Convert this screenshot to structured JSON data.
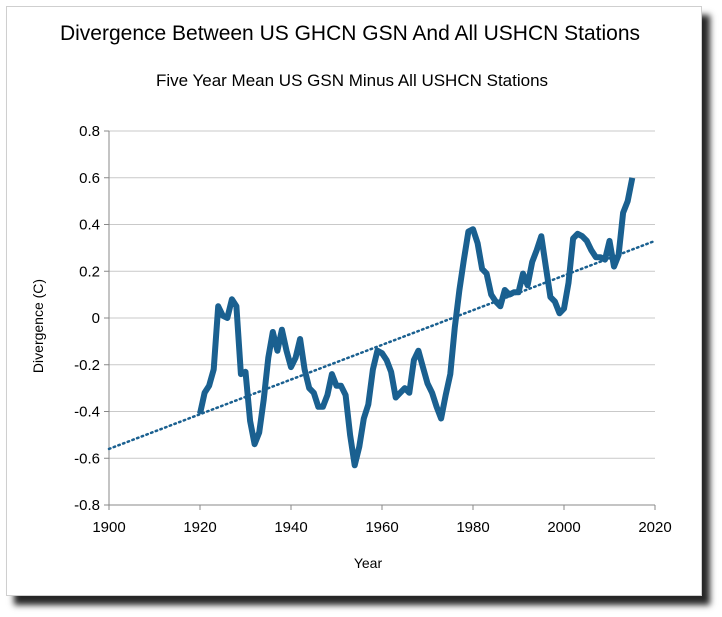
{
  "chart_data": {
    "type": "line",
    "title": "Divergence Between US GHCN GSN And All USHCN Stations",
    "subtitle": "Five Year Mean  US GSN Minus All USHCN Stations",
    "xlabel": "Year",
    "ylabel": "Divergence (C)",
    "xlim": [
      1900,
      2020
    ],
    "ylim": [
      -0.8,
      0.8
    ],
    "xticks": [
      "1900",
      "1920",
      "1940",
      "1960",
      "1980",
      "2000",
      "2020"
    ],
    "yticks": [
      "0.8",
      "0.6",
      "0.4",
      "0.2",
      "0",
      "-0.2",
      "-0.4",
      "-0.6",
      "-0.8"
    ],
    "grid": "horizontal",
    "series": [
      {
        "values": [
          [
            1920,
            -0.41
          ],
          [
            1921,
            -0.32
          ],
          [
            1922,
            -0.29
          ],
          [
            1923,
            -0.22
          ],
          [
            1924,
            0.05
          ],
          [
            1925,
            0.01
          ],
          [
            1926,
            0.0
          ],
          [
            1927,
            0.08
          ],
          [
            1928,
            0.05
          ],
          [
            1929,
            -0.24
          ],
          [
            1930,
            -0.23
          ],
          [
            1931,
            -0.44
          ],
          [
            1932,
            -0.54
          ],
          [
            1933,
            -0.49
          ],
          [
            1934,
            -0.35
          ],
          [
            1935,
            -0.17
          ],
          [
            1936,
            -0.06
          ],
          [
            1937,
            -0.14
          ],
          [
            1938,
            -0.05
          ],
          [
            1939,
            -0.14
          ],
          [
            1940,
            -0.21
          ],
          [
            1941,
            -0.17
          ],
          [
            1942,
            -0.09
          ],
          [
            1943,
            -0.22
          ],
          [
            1944,
            -0.3
          ],
          [
            1945,
            -0.32
          ],
          [
            1946,
            -0.38
          ],
          [
            1947,
            -0.38
          ],
          [
            1948,
            -0.33
          ],
          [
            1949,
            -0.24
          ],
          [
            1950,
            -0.29
          ],
          [
            1951,
            -0.29
          ],
          [
            1952,
            -0.33
          ],
          [
            1953,
            -0.5
          ],
          [
            1954,
            -0.63
          ],
          [
            1955,
            -0.55
          ],
          [
            1956,
            -0.43
          ],
          [
            1957,
            -0.37
          ],
          [
            1958,
            -0.22
          ],
          [
            1959,
            -0.14
          ],
          [
            1960,
            -0.15
          ],
          [
            1961,
            -0.18
          ],
          [
            1962,
            -0.23
          ],
          [
            1963,
            -0.34
          ],
          [
            1964,
            -0.32
          ],
          [
            1965,
            -0.3
          ],
          [
            1966,
            -0.32
          ],
          [
            1967,
            -0.18
          ],
          [
            1968,
            -0.14
          ],
          [
            1969,
            -0.21
          ],
          [
            1970,
            -0.28
          ],
          [
            1971,
            -0.32
          ],
          [
            1972,
            -0.38
          ],
          [
            1973,
            -0.43
          ],
          [
            1974,
            -0.33
          ],
          [
            1975,
            -0.24
          ],
          [
            1976,
            -0.04
          ],
          [
            1977,
            0.12
          ],
          [
            1978,
            0.25
          ],
          [
            1979,
            0.37
          ],
          [
            1980,
            0.38
          ],
          [
            1981,
            0.32
          ],
          [
            1982,
            0.21
          ],
          [
            1983,
            0.19
          ],
          [
            1984,
            0.1
          ],
          [
            1985,
            0.07
          ],
          [
            1986,
            0.05
          ],
          [
            1987,
            0.12
          ],
          [
            1988,
            0.1
          ],
          [
            1989,
            0.11
          ],
          [
            1990,
            0.11
          ],
          [
            1991,
            0.19
          ],
          [
            1992,
            0.14
          ],
          [
            1993,
            0.24
          ],
          [
            1994,
            0.29
          ],
          [
            1995,
            0.35
          ],
          [
            1996,
            0.22
          ],
          [
            1997,
            0.09
          ],
          [
            1998,
            0.07
          ],
          [
            1999,
            0.02
          ],
          [
            2000,
            0.04
          ],
          [
            2001,
            0.15
          ],
          [
            2002,
            0.34
          ],
          [
            2003,
            0.36
          ],
          [
            2004,
            0.35
          ],
          [
            2005,
            0.33
          ],
          [
            2006,
            0.29
          ],
          [
            2007,
            0.26
          ],
          [
            2008,
            0.26
          ],
          [
            2009,
            0.25
          ],
          [
            2010,
            0.33
          ],
          [
            2011,
            0.22
          ],
          [
            2012,
            0.27
          ],
          [
            2013,
            0.45
          ],
          [
            2014,
            0.5
          ],
          [
            2015,
            0.6
          ]
        ],
        "color": "#1a6090"
      }
    ],
    "trendline": {
      "style": "dotted",
      "color": "#1a6090",
      "points": [
        [
          1900,
          -0.56
        ],
        [
          2020,
          0.33
        ]
      ]
    }
  }
}
